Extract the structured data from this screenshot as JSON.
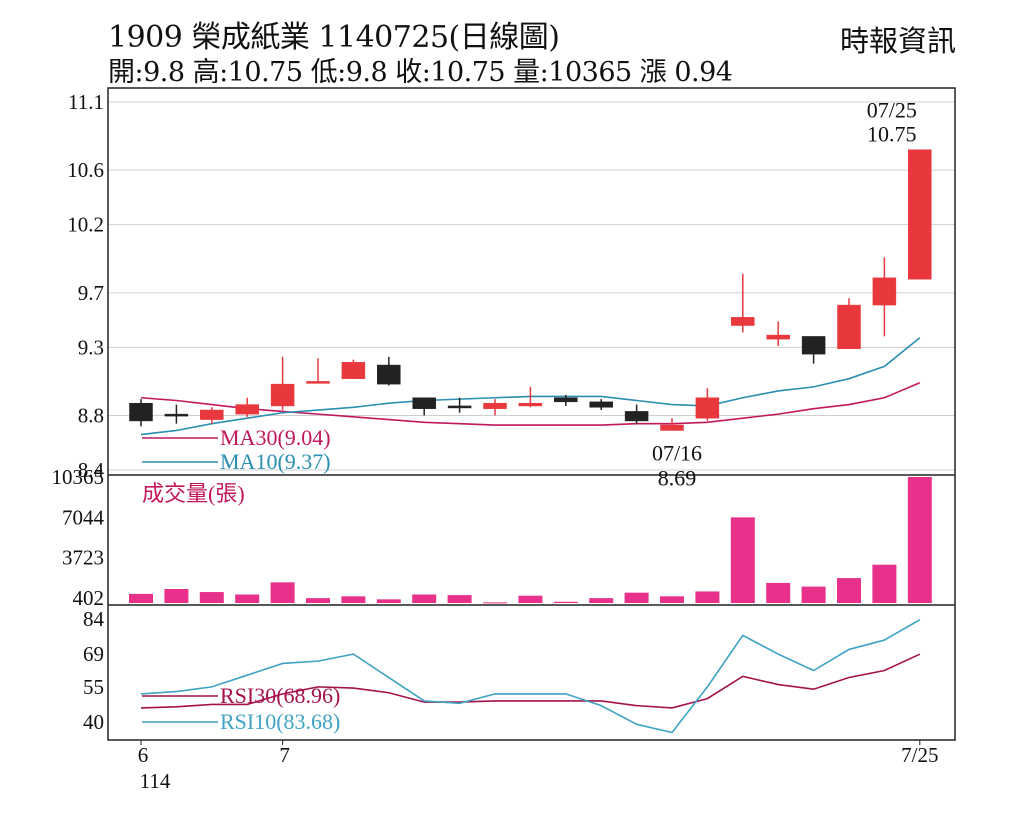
{
  "header": {
    "title": "1909  榮成紙業 1140725(日線圖)",
    "stats": "開:9.8 高:10.75 低:9.8 收:10.75 量:10365 漲 0.94",
    "source": "時報資訊"
  },
  "colors": {
    "up": "#e8383d",
    "down": "#222222",
    "volume": "#e8318a",
    "ma30": "#c2185b",
    "ma10": "#2a8fb0",
    "rsi30": "#a3124a",
    "rsi10": "#3fa3c4",
    "grid": "#cfcfcf"
  },
  "chart_data": [
    {
      "type": "candlestick",
      "panel": "price",
      "yticks": [
        "11.1",
        "10.6",
        "10.2",
        "9.7",
        "9.3",
        "8.8",
        "8.4"
      ],
      "ylim": [
        8.4,
        11.1
      ],
      "x_labels": [
        {
          "index": 0,
          "text": "6"
        },
        {
          "index": 4,
          "text": "7"
        },
        {
          "index": 22,
          "text": "7/25"
        }
      ],
      "x_sublabel": "114",
      "candles": [
        {
          "open": 8.89,
          "close": 8.76,
          "high": 8.92,
          "low": 8.72
        },
        {
          "open": 8.81,
          "close": 8.8,
          "high": 8.88,
          "low": 8.74
        },
        {
          "open": 8.77,
          "close": 8.84,
          "high": 8.86,
          "low": 8.74
        },
        {
          "open": 8.81,
          "close": 8.88,
          "high": 8.93,
          "low": 8.79
        },
        {
          "open": 8.87,
          "close": 9.03,
          "high": 9.23,
          "low": 8.84
        },
        {
          "open": 9.04,
          "close": 9.05,
          "high": 9.22,
          "low": 9.04
        },
        {
          "open": 9.07,
          "close": 9.19,
          "high": 9.21,
          "low": 9.07
        },
        {
          "open": 9.17,
          "close": 9.03,
          "high": 9.23,
          "low": 9.02
        },
        {
          "open": 8.93,
          "close": 8.85,
          "high": 8.93,
          "low": 8.8
        },
        {
          "open": 8.87,
          "close": 8.86,
          "high": 8.93,
          "low": 8.82
        },
        {
          "open": 8.85,
          "close": 8.89,
          "high": 8.92,
          "low": 8.8
        },
        {
          "open": 8.87,
          "close": 8.89,
          "high": 9.01,
          "low": 8.86
        },
        {
          "open": 8.93,
          "close": 8.9,
          "high": 8.95,
          "low": 8.87
        },
        {
          "open": 8.9,
          "close": 8.86,
          "high": 8.92,
          "low": 8.84
        },
        {
          "open": 8.83,
          "close": 8.76,
          "high": 8.88,
          "low": 8.74
        },
        {
          "open": 8.69,
          "close": 8.73,
          "high": 8.78,
          "low": 8.69
        },
        {
          "open": 8.78,
          "close": 8.93,
          "high": 9.0,
          "low": 8.76
        },
        {
          "open": 9.46,
          "close": 9.52,
          "high": 9.84,
          "low": 9.41
        },
        {
          "open": 9.36,
          "close": 9.39,
          "high": 9.49,
          "low": 9.31
        },
        {
          "open": 9.38,
          "close": 9.25,
          "high": 9.38,
          "low": 9.18
        },
        {
          "open": 9.29,
          "close": 9.61,
          "high": 9.66,
          "low": 9.29
        },
        {
          "open": 9.61,
          "close": 9.81,
          "high": 9.96,
          "low": 9.38
        },
        {
          "open": 9.8,
          "close": 10.75,
          "high": 10.75,
          "low": 9.8
        }
      ],
      "series": [
        {
          "name": "MA30(9.04)",
          "values": [
            8.93,
            8.91,
            8.88,
            8.85,
            8.83,
            8.81,
            8.79,
            8.77,
            8.75,
            8.74,
            8.73,
            8.73,
            8.73,
            8.73,
            8.74,
            8.74,
            8.75,
            8.78,
            8.81,
            8.85,
            8.88,
            8.93,
            9.04
          ]
        },
        {
          "name": "MA10(9.37)",
          "values": [
            8.66,
            8.69,
            8.74,
            8.78,
            8.82,
            8.84,
            8.86,
            8.89,
            8.91,
            8.92,
            8.93,
            8.94,
            8.94,
            8.94,
            8.91,
            8.88,
            8.87,
            8.93,
            8.98,
            9.01,
            9.07,
            9.16,
            9.37
          ]
        }
      ],
      "annotations": [
        {
          "index": 15,
          "date": "07/16",
          "value": "8.69",
          "position": "below"
        },
        {
          "index": 22,
          "date": "07/25",
          "value": "10.75",
          "position": "above"
        }
      ]
    },
    {
      "type": "bar",
      "panel": "volume",
      "label": "成交量(張)",
      "yticks": [
        "10365",
        "7044",
        "3723",
        "402"
      ],
      "ylim": [
        0,
        10365
      ],
      "values": [
        750,
        1150,
        900,
        700,
        1700,
        400,
        550,
        300,
        700,
        650,
        50,
        600,
        100,
        400,
        850,
        550,
        950,
        7044,
        1650,
        1350,
        2050,
        3150,
        10365
      ]
    },
    {
      "type": "line",
      "panel": "rsi",
      "yticks": [
        "84",
        "69",
        "55",
        "40"
      ],
      "ylim": [
        35,
        84
      ],
      "series": [
        {
          "name": "RSI30(68.96)",
          "values": [
            46,
            46.5,
            47.5,
            47.5,
            52,
            55,
            54.5,
            52.5,
            48.5,
            48.5,
            49,
            49,
            49,
            49,
            47,
            46,
            50,
            59.5,
            56,
            54,
            59,
            62,
            68.96
          ]
        },
        {
          "name": "RSI10(83.68)",
          "values": [
            52,
            53,
            55,
            60,
            65,
            66,
            69,
            59,
            49,
            48,
            52,
            52,
            52,
            47,
            39,
            35.5,
            55,
            77,
            69,
            62,
            71,
            75,
            83.68
          ]
        }
      ]
    }
  ]
}
